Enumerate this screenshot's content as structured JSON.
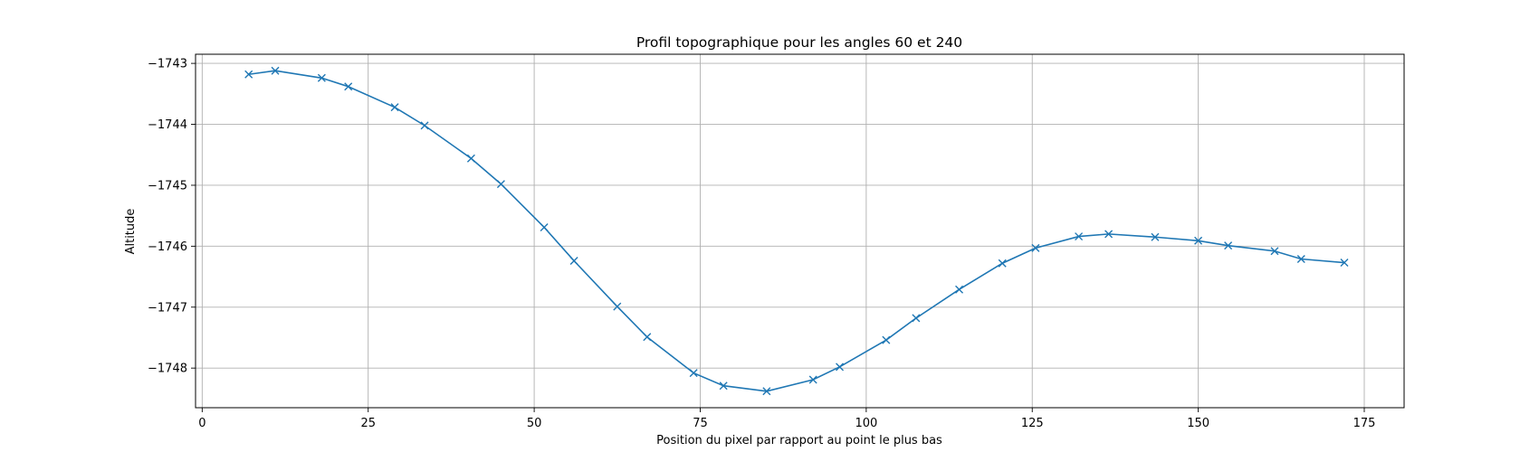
{
  "chart_data": {
    "type": "line",
    "title": "Profil topographique pour les angles 60 et 240",
    "xlabel": "Position du pixel par rapport au point le plus bas",
    "ylabel": "Altitude",
    "xlim": [
      -1,
      181
    ],
    "ylim": [
      -1748.65,
      -1742.85
    ],
    "xticks": [
      0,
      25,
      50,
      75,
      100,
      125,
      150,
      175
    ],
    "yticks": [
      -1743,
      -1744,
      -1745,
      -1746,
      -1747,
      -1748
    ],
    "grid": true,
    "marker": "x",
    "color": "#1f77b4",
    "series": [
      {
        "x": [
          7,
          11,
          18,
          22,
          29,
          33.5,
          40.5,
          45,
          51.5,
          56,
          62.5,
          67,
          74,
          78.5,
          85,
          92,
          96,
          103,
          107.5,
          114,
          120.5,
          125.5,
          132,
          136.5,
          143.5,
          150,
          154.5,
          161.5,
          165.5,
          172
        ],
        "y": [
          -1743.18,
          -1743.12,
          -1743.24,
          -1743.38,
          -1743.72,
          -1744.02,
          -1744.56,
          -1744.98,
          -1745.69,
          -1746.24,
          -1746.99,
          -1747.49,
          -1748.08,
          -1748.29,
          -1748.38,
          -1748.19,
          -1747.98,
          -1747.54,
          -1747.18,
          -1746.71,
          -1746.28,
          -1746.03,
          -1745.84,
          -1745.8,
          -1745.85,
          -1745.91,
          -1745.99,
          -1746.08,
          -1746.21,
          -1746.27
        ]
      }
    ]
  }
}
